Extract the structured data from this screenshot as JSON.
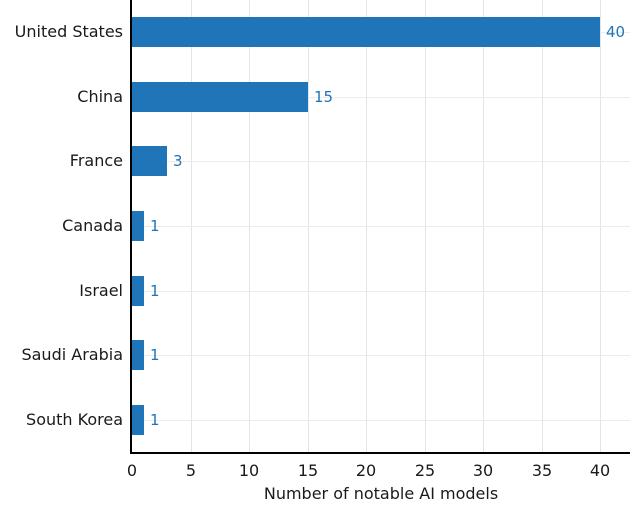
{
  "chart_data": {
    "type": "bar",
    "orientation": "horizontal",
    "title": "",
    "categories": [
      "United States",
      "China",
      "France",
      "Canada",
      "Israel",
      "Saudi Arabia",
      "South Korea"
    ],
    "values": [
      40,
      15,
      3,
      1,
      1,
      1,
      1
    ],
    "value_labels": [
      "40",
      "15",
      "3",
      "1",
      "1",
      "1",
      "1"
    ],
    "xlabel": "Number of notable AI models",
    "ylabel": "",
    "xticks": [
      0,
      5,
      10,
      15,
      20,
      25,
      30,
      35,
      40
    ],
    "xlim": [
      0,
      40
    ],
    "grid": true,
    "legend": false,
    "colors": {
      "bar": "#2074b8",
      "value_label": "#2074b8",
      "axis": "#000000",
      "gridline_vertical": "#e4e4e4",
      "gridline_horizontal": "#ececec",
      "text": "#1a1a1a"
    }
  }
}
